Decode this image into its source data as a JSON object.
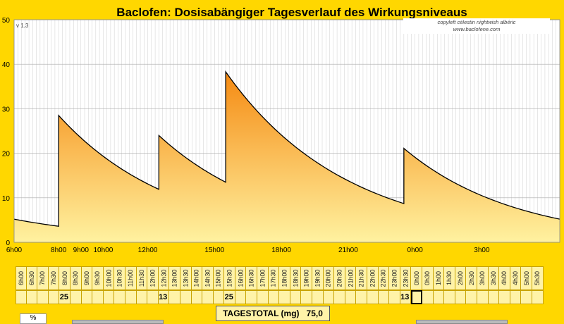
{
  "chart_data": {
    "type": "area",
    "title": "Baclofen: Dosisabängiger Tagesverlauf des Wirkungsniveaus",
    "version": "v 1.3",
    "copyright_lines": [
      "copyleft célestin nightwish albéric",
      "www.baclofene.com"
    ],
    "ylim": [
      0,
      50
    ],
    "yticks": [
      0,
      10,
      20,
      30,
      40,
      50
    ],
    "xlim": [
      6,
      30.5
    ],
    "xticks": [
      {
        "h": 6,
        "label": "6h00"
      },
      {
        "h": 8,
        "label": "8h00"
      },
      {
        "h": 9,
        "label": "9h00"
      },
      {
        "h": 10,
        "label": "10h00"
      },
      {
        "h": 12,
        "label": "12h00"
      },
      {
        "h": 15,
        "label": "15h00"
      },
      {
        "h": 18,
        "label": "18h00"
      },
      {
        "h": 21,
        "label": "21h00"
      },
      {
        "h": 24,
        "label": "0h00"
      },
      {
        "h": 27,
        "label": "3h00"
      }
    ],
    "x": [
      6,
      8,
      8,
      12.5,
      12.5,
      15.5,
      15.5,
      23.5,
      23.5,
      30.5
    ],
    "y": [
      5.2,
      3.6,
      28.5,
      11.9,
      24.0,
      13.5,
      38.3,
      8.7,
      21.1,
      5.2
    ],
    "grid": true,
    "fill_colors": [
      "#F58A12",
      "#FFF2A0"
    ],
    "line_color": "#000000"
  },
  "schedule": {
    "times": [
      "6h00",
      "6h30",
      "7h00",
      "7h30",
      "8h00",
      "8h30",
      "9h00",
      "9h30",
      "10h00",
      "10h30",
      "11h00",
      "11h30",
      "12h00",
      "12h30",
      "13h00",
      "13h30",
      "14h00",
      "14h30",
      "15h00",
      "15h30",
      "16h00",
      "16h30",
      "17h00",
      "17h30",
      "18h00",
      "18h30",
      "19h00",
      "19h30",
      "20h00",
      "20h30",
      "21h00",
      "21h30",
      "22h00",
      "22h30",
      "23h00",
      "23h30",
      "0h00",
      "0h30",
      "1h00",
      "1h30",
      "2h00",
      "2h30",
      "3h00",
      "3h30",
      "4h00",
      "4h30",
      "5h00",
      "5h30"
    ],
    "doses": [
      "",
      "",
      "",
      "",
      "25",
      "",
      "",
      "",
      "",
      "",
      "",
      "",
      "",
      "13",
      "",
      "",
      "",
      "",
      "",
      "25",
      "",
      "",
      "",
      "",
      "",
      "",
      "",
      "",
      "",
      "",
      "",
      "",
      "",
      "",
      "",
      "13",
      "",
      "",
      "",
      "",
      "",
      "",
      "",
      "",
      "",
      "",
      "",
      ""
    ],
    "active_index": 36
  },
  "total": {
    "label": "TAGESTOTAL (mg)",
    "value": "75,0"
  },
  "percent_label": "%"
}
